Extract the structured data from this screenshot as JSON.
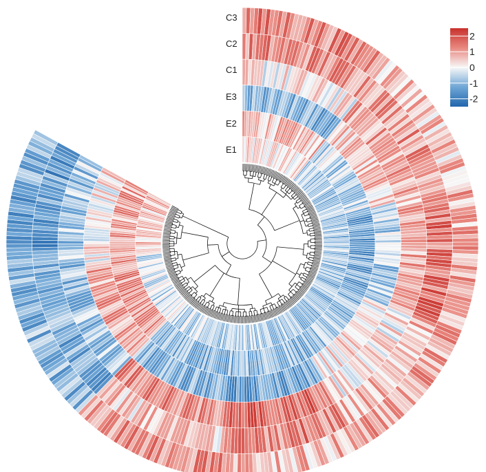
{
  "chart_data": {
    "type": "heatmap",
    "layout": "circular",
    "dendrogram": true,
    "rows_description": "genes arranged clockwise around a circle, clustered by a central dendrogram",
    "tracks": [
      "E1",
      "E2",
      "E3",
      "C1",
      "C2",
      "C3"
    ],
    "track_order_from_inside": [
      "E1",
      "E2",
      "E3",
      "C1",
      "C2",
      "C3"
    ],
    "colorscale": {
      "min": -2.5,
      "max": 2.5,
      "stops": [
        {
          "value": -2.5,
          "color": "#2166ac"
        },
        {
          "value": -1.2,
          "color": "#6fa6d6"
        },
        {
          "value": 0,
          "color": "#f7f7f7"
        },
        {
          "value": 1.2,
          "color": "#e8877f"
        },
        {
          "value": 2.5,
          "color": "#c8312c"
        }
      ]
    },
    "legend": {
      "ticks": [
        "2",
        "1",
        "0",
        "-1",
        "-2"
      ],
      "tick_values": [
        2,
        1,
        0,
        -1,
        -2
      ],
      "position": "top-right"
    },
    "clusters": [
      {
        "fraction": 0.13,
        "E1": 0.2,
        "E2": 0.6,
        "E3": -1.2,
        "C1": 0.1,
        "C2": 1.2,
        "C3": 1.3
      },
      {
        "fraction": 0.12,
        "E1": -0.7,
        "E2": -0.5,
        "E3": 0.5,
        "C1": 0.9,
        "C2": 1.1,
        "C3": 0.6
      },
      {
        "fraction": 0.13,
        "E1": -0.9,
        "E2": -1.3,
        "E3": -0.6,
        "C1": 0.8,
        "C2": 1.5,
        "C3": 0.8
      },
      {
        "fraction": 0.12,
        "E1": -1.0,
        "E2": -0.9,
        "E3": 0.3,
        "C1": 0.2,
        "C2": 0.6,
        "C3": 0.9
      },
      {
        "fraction": 0.12,
        "E1": -0.7,
        "E2": -1.0,
        "E3": -1.3,
        "C1": 1.6,
        "C2": 1.3,
        "C3": 0.7
      },
      {
        "fraction": 0.13,
        "E1": -0.6,
        "E2": -1.0,
        "E3": -1.1,
        "C1": 1.2,
        "C2": 0.5,
        "C3": 1.1
      },
      {
        "fraction": 0.13,
        "E1": -0.4,
        "E2": 1.1,
        "E3": 0.9,
        "C1": -0.8,
        "C2": -1.2,
        "C3": -1.0
      },
      {
        "fraction": 0.12,
        "E1": 0.6,
        "E2": 0.9,
        "E3": 0.2,
        "C1": -0.7,
        "C2": -1.4,
        "C3": -1.2
      }
    ]
  },
  "labels": {
    "E1": "E1",
    "E2": "E2",
    "E3": "E3",
    "C1": "C1",
    "C2": "C2",
    "C3": "C3"
  }
}
